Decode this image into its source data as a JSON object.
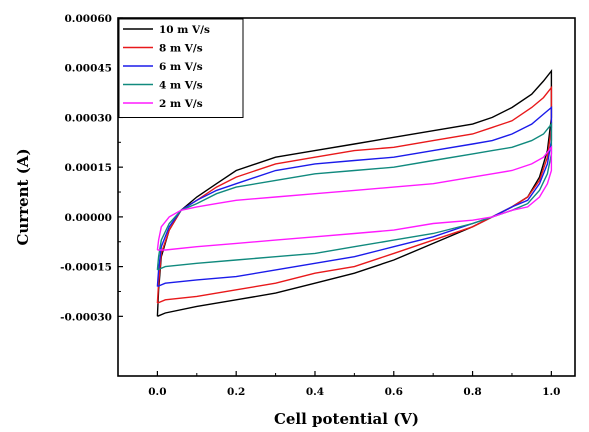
{
  "chart_data": {
    "type": "line",
    "title": "",
    "xlabel": "Cell potential (V)",
    "ylabel": "Current (A)",
    "xlim": [
      -0.1,
      1.06
    ],
    "ylim": [
      -0.00048,
      0.0006
    ],
    "xticks": [
      0.0,
      0.2,
      0.4,
      0.6,
      0.8,
      1.0
    ],
    "xtick_labels": [
      "0.0",
      "0.2",
      "0.4",
      "0.6",
      "0.8",
      "1.0"
    ],
    "yticks": [
      -0.0003,
      -0.00015,
      0.0,
      0.00015,
      0.0003,
      0.00045,
      0.0006
    ],
    "ytick_labels": [
      "-0.00030",
      "-0.00015",
      "0.00000",
      "0.00015",
      "0.00030",
      "0.00045",
      "0.00060"
    ],
    "grid": false,
    "legend_position": "top-left",
    "series": [
      {
        "name": "10 m V/s",
        "color": "#000000",
        "points": [
          [
            0.0,
            -0.0003
          ],
          [
            0.003,
            -0.00022
          ],
          [
            0.01,
            -0.00012
          ],
          [
            0.03,
            -4e-05
          ],
          [
            0.06,
            2e-05
          ],
          [
            0.1,
            6e-05
          ],
          [
            0.15,
            0.0001
          ],
          [
            0.2,
            0.00014
          ],
          [
            0.3,
            0.00018
          ],
          [
            0.4,
            0.0002
          ],
          [
            0.5,
            0.00022
          ],
          [
            0.6,
            0.00024
          ],
          [
            0.7,
            0.00026
          ],
          [
            0.8,
            0.00028
          ],
          [
            0.85,
            0.0003
          ],
          [
            0.9,
            0.00033
          ],
          [
            0.95,
            0.00037
          ],
          [
            0.98,
            0.00041
          ],
          [
            1.0,
            0.00044
          ],
          [
            1.0,
            0.0003
          ],
          [
            0.99,
            0.0002
          ],
          [
            0.97,
            0.00012
          ],
          [
            0.94,
            6e-05
          ],
          [
            0.9,
            3e-05
          ],
          [
            0.85,
            0.0
          ],
          [
            0.8,
            -3e-05
          ],
          [
            0.7,
            -8e-05
          ],
          [
            0.6,
            -0.00013
          ],
          [
            0.5,
            -0.00017
          ],
          [
            0.4,
            -0.0002
          ],
          [
            0.3,
            -0.00023
          ],
          [
            0.2,
            -0.00025
          ],
          [
            0.1,
            -0.00027
          ],
          [
            0.02,
            -0.00029
          ],
          [
            0.0,
            -0.0003
          ]
        ]
      },
      {
        "name": "8 m V/s",
        "color": "#e8191b",
        "points": [
          [
            0.0,
            -0.00026
          ],
          [
            0.003,
            -0.0002
          ],
          [
            0.01,
            -0.00011
          ],
          [
            0.03,
            -4e-05
          ],
          [
            0.06,
            2e-05
          ],
          [
            0.1,
            5e-05
          ],
          [
            0.15,
            9e-05
          ],
          [
            0.2,
            0.00012
          ],
          [
            0.3,
            0.00016
          ],
          [
            0.4,
            0.00018
          ],
          [
            0.5,
            0.0002
          ],
          [
            0.6,
            0.00021
          ],
          [
            0.7,
            0.00023
          ],
          [
            0.8,
            0.00025
          ],
          [
            0.85,
            0.00027
          ],
          [
            0.9,
            0.00029
          ],
          [
            0.95,
            0.00033
          ],
          [
            0.98,
            0.00036
          ],
          [
            1.0,
            0.00039
          ],
          [
            1.0,
            0.00027
          ],
          [
            0.99,
            0.00018
          ],
          [
            0.97,
            0.00011
          ],
          [
            0.94,
            6e-05
          ],
          [
            0.9,
            3e-05
          ],
          [
            0.85,
            0.0
          ],
          [
            0.8,
            -3e-05
          ],
          [
            0.7,
            -7e-05
          ],
          [
            0.6,
            -0.00011
          ],
          [
            0.5,
            -0.00015
          ],
          [
            0.4,
            -0.00017
          ],
          [
            0.3,
            -0.0002
          ],
          [
            0.2,
            -0.00022
          ],
          [
            0.1,
            -0.00024
          ],
          [
            0.02,
            -0.00025
          ],
          [
            0.0,
            -0.00026
          ]
        ]
      },
      {
        "name": "6 m V/s",
        "color": "#1b1bea",
        "points": [
          [
            0.0,
            -0.00021
          ],
          [
            0.003,
            -0.00016
          ],
          [
            0.01,
            -9e-05
          ],
          [
            0.03,
            -3e-05
          ],
          [
            0.06,
            2e-05
          ],
          [
            0.1,
            5e-05
          ],
          [
            0.15,
            8e-05
          ],
          [
            0.2,
            0.0001
          ],
          [
            0.3,
            0.00014
          ],
          [
            0.4,
            0.00016
          ],
          [
            0.5,
            0.00017
          ],
          [
            0.6,
            0.00018
          ],
          [
            0.7,
            0.0002
          ],
          [
            0.8,
            0.00022
          ],
          [
            0.85,
            0.00023
          ],
          [
            0.9,
            0.00025
          ],
          [
            0.95,
            0.00028
          ],
          [
            0.98,
            0.00031
          ],
          [
            1.0,
            0.00033
          ],
          [
            1.0,
            0.00023
          ],
          [
            0.99,
            0.00016
          ],
          [
            0.97,
            0.0001
          ],
          [
            0.94,
            5e-05
          ],
          [
            0.9,
            3e-05
          ],
          [
            0.85,
            0.0
          ],
          [
            0.8,
            -2e-05
          ],
          [
            0.7,
            -6e-05
          ],
          [
            0.6,
            -9e-05
          ],
          [
            0.5,
            -0.00012
          ],
          [
            0.4,
            -0.00014
          ],
          [
            0.3,
            -0.00016
          ],
          [
            0.2,
            -0.00018
          ],
          [
            0.1,
            -0.00019
          ],
          [
            0.02,
            -0.0002
          ],
          [
            0.0,
            -0.00021
          ]
        ]
      },
      {
        "name": "4 m V/s",
        "color": "#118a7e",
        "points": [
          [
            0.0,
            -0.00016
          ],
          [
            0.003,
            -0.00012
          ],
          [
            0.01,
            -7e-05
          ],
          [
            0.03,
            -2e-05
          ],
          [
            0.06,
            2e-05
          ],
          [
            0.1,
            4e-05
          ],
          [
            0.15,
            7e-05
          ],
          [
            0.2,
            9e-05
          ],
          [
            0.3,
            0.00011
          ],
          [
            0.4,
            0.00013
          ],
          [
            0.5,
            0.00014
          ],
          [
            0.6,
            0.00015
          ],
          [
            0.7,
            0.00017
          ],
          [
            0.8,
            0.00019
          ],
          [
            0.85,
            0.0002
          ],
          [
            0.9,
            0.00021
          ],
          [
            0.95,
            0.00023
          ],
          [
            0.98,
            0.00025
          ],
          [
            1.0,
            0.00028
          ],
          [
            1.0,
            0.00019
          ],
          [
            0.99,
            0.00013
          ],
          [
            0.97,
            8e-05
          ],
          [
            0.94,
            4e-05
          ],
          [
            0.9,
            2e-05
          ],
          [
            0.85,
            0.0
          ],
          [
            0.8,
            -2e-05
          ],
          [
            0.7,
            -5e-05
          ],
          [
            0.6,
            -7e-05
          ],
          [
            0.5,
            -9e-05
          ],
          [
            0.4,
            -0.00011
          ],
          [
            0.3,
            -0.00012
          ],
          [
            0.2,
            -0.00013
          ],
          [
            0.1,
            -0.00014
          ],
          [
            0.02,
            -0.00015
          ],
          [
            0.0,
            -0.00016
          ]
        ]
      },
      {
        "name": "2 m V/s",
        "color": "#ff1aff",
        "points": [
          [
            0.0,
            -0.0001
          ],
          [
            0.003,
            -7e-05
          ],
          [
            0.01,
            -3e-05
          ],
          [
            0.03,
            0.0
          ],
          [
            0.06,
            2e-05
          ],
          [
            0.1,
            3e-05
          ],
          [
            0.15,
            4e-05
          ],
          [
            0.2,
            5e-05
          ],
          [
            0.3,
            6e-05
          ],
          [
            0.4,
            7e-05
          ],
          [
            0.5,
            8e-05
          ],
          [
            0.6,
            9e-05
          ],
          [
            0.7,
            0.0001
          ],
          [
            0.8,
            0.00012
          ],
          [
            0.85,
            0.00013
          ],
          [
            0.9,
            0.00014
          ],
          [
            0.95,
            0.00016
          ],
          [
            0.98,
            0.00018
          ],
          [
            1.0,
            0.00021
          ],
          [
            1.0,
            0.00014
          ],
          [
            0.99,
            0.0001
          ],
          [
            0.97,
            6e-05
          ],
          [
            0.94,
            3e-05
          ],
          [
            0.9,
            2e-05
          ],
          [
            0.85,
            0.0
          ],
          [
            0.8,
            -1e-05
          ],
          [
            0.7,
            -2e-05
          ],
          [
            0.6,
            -4e-05
          ],
          [
            0.5,
            -5e-05
          ],
          [
            0.4,
            -6e-05
          ],
          [
            0.3,
            -7e-05
          ],
          [
            0.2,
            -8e-05
          ],
          [
            0.1,
            -9e-05
          ],
          [
            0.02,
            -0.0001
          ],
          [
            0.0,
            -0.0001
          ]
        ]
      }
    ]
  }
}
